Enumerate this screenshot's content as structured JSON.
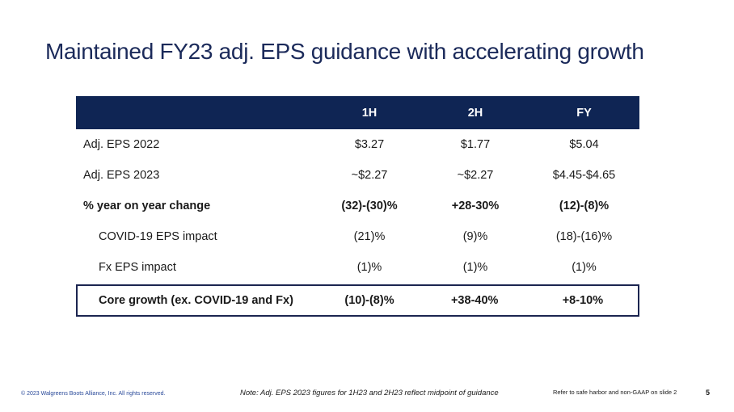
{
  "slide": {
    "title": "Maintained FY23 adj. EPS guidance with accelerating growth",
    "page_number": "5"
  },
  "table": {
    "headers": [
      "",
      "1H",
      "2H",
      "FY"
    ],
    "rows": [
      {
        "label": "Adj. EPS 2022",
        "values": [
          "$3.27",
          "$1.77",
          "$5.04"
        ]
      },
      {
        "label": "Adj. EPS 2023",
        "values": [
          "~$2.27",
          "~$2.27",
          "$4.45-$4.65"
        ]
      },
      {
        "label": "% year on year change",
        "values": [
          "(32)-(30)%",
          "+28-30%",
          "(12)-(8)%"
        ]
      },
      {
        "label": "COVID-19 EPS impact",
        "values": [
          "(21)%",
          "(9)%",
          "(18)-(16)%"
        ]
      },
      {
        "label": "Fx EPS impact",
        "values": [
          "(1)%",
          "(1)%",
          "(1)%"
        ]
      },
      {
        "label": "Core growth (ex. COVID-19 and Fx)",
        "values": [
          "(10)-(8)%",
          "+38-40%",
          "+8-10%"
        ]
      }
    ]
  },
  "footer": {
    "copyright": "© 2023 Walgreens Boots Alliance, Inc. All rights reserved.",
    "note": "Note: Adj. EPS 2023 figures for 1H23 and 2H23 reflect midpoint of guidance",
    "safe_harbor": "Refer to safe harbor and non-GAAP on slide 2"
  },
  "colors": {
    "header_bg": "#0f2554",
    "title": "#1b2a5a",
    "copyright": "#2a4a9a"
  }
}
